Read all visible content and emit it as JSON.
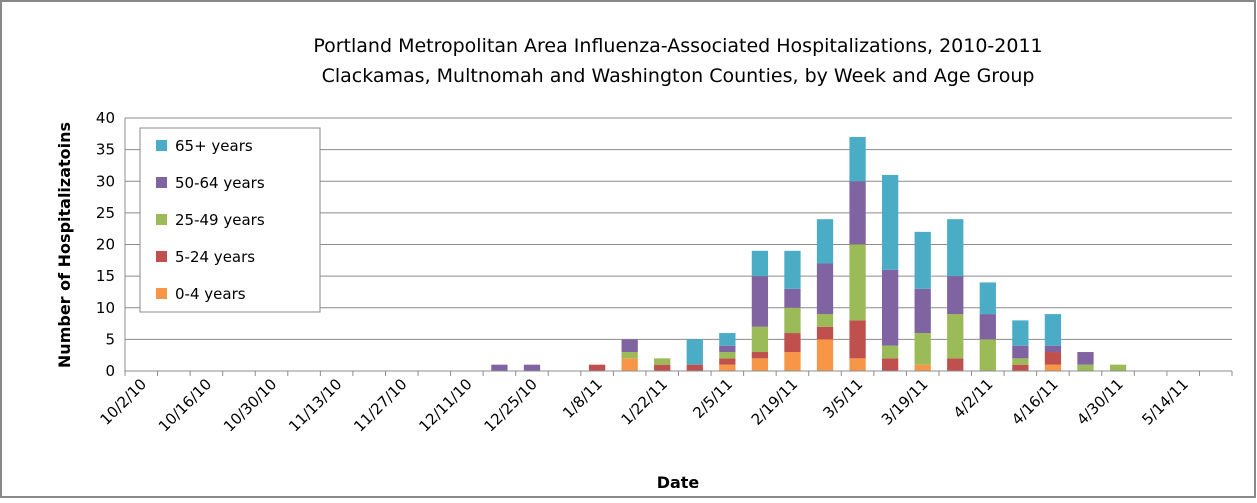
{
  "chart_data": {
    "type": "stacked_bar",
    "title": "Portland Metropolitan Area Influenza-Associated Hospitalizations, 2010-2011",
    "subtitle": "Clackamas, Multnomah and Washington Counties, by Week and Age Group",
    "x_label": "Date",
    "y_label": "Number of Hospitalizatoins",
    "categories": [
      "10/2/10",
      null,
      "10/16/10",
      null,
      "10/30/10",
      null,
      "11/13/10",
      null,
      "11/27/10",
      null,
      "12/11/10",
      null,
      "12/25/10",
      null,
      "1/8/11",
      null,
      "1/22/11",
      null,
      "2/5/11",
      null,
      "2/19/11",
      null,
      "3/5/11",
      null,
      "3/19/11",
      null,
      "4/2/11",
      null,
      "4/16/11",
      null,
      "4/30/11",
      null,
      "5/14/11",
      null
    ],
    "series": [
      {
        "name": "0-4 years",
        "color": "#f79646",
        "values": [
          0,
          0,
          0,
          0,
          0,
          0,
          0,
          0,
          0,
          0,
          0,
          0,
          0,
          0,
          0,
          2,
          0,
          0,
          1,
          2,
          3,
          5,
          2,
          0,
          1,
          0,
          0,
          0,
          1,
          0,
          0,
          0,
          0,
          0
        ]
      },
      {
        "name": "5-24 years",
        "color": "#c0504d",
        "values": [
          0,
          0,
          0,
          0,
          0,
          0,
          0,
          0,
          0,
          0,
          0,
          0,
          0,
          0,
          1,
          0,
          1,
          1,
          1,
          1,
          3,
          2,
          6,
          2,
          0,
          2,
          0,
          1,
          2,
          0,
          0,
          0,
          0,
          0
        ]
      },
      {
        "name": "25-49 years",
        "color": "#9bbb59",
        "values": [
          0,
          0,
          0,
          0,
          0,
          0,
          0,
          0,
          0,
          0,
          0,
          0,
          0,
          0,
          0,
          1,
          1,
          0,
          1,
          4,
          4,
          2,
          12,
          2,
          5,
          7,
          5,
          1,
          0,
          1,
          1,
          0,
          0,
          0
        ]
      },
      {
        "name": "50-64 years",
        "color": "#8064a2",
        "values": [
          0,
          0,
          0,
          0,
          0,
          0,
          0,
          0,
          0,
          0,
          0,
          1,
          1,
          0,
          0,
          2,
          0,
          0,
          1,
          8,
          3,
          8,
          10,
          12,
          7,
          6,
          4,
          2,
          1,
          2,
          0,
          0,
          0,
          0
        ]
      },
      {
        "name": "65+ years",
        "color": "#4bacc6",
        "values": [
          0,
          0,
          0,
          0,
          0,
          0,
          0,
          0,
          0,
          0,
          0,
          0,
          0,
          0,
          0,
          0,
          0,
          4,
          2,
          4,
          6,
          7,
          7,
          15,
          9,
          9,
          5,
          4,
          5,
          0,
          0,
          0,
          0,
          0
        ]
      }
    ],
    "ylim": [
      0,
      40
    ],
    "yticks": [
      0,
      5,
      10,
      15,
      20,
      25,
      30,
      35,
      40
    ],
    "grid": true,
    "legend": "upper left"
  }
}
